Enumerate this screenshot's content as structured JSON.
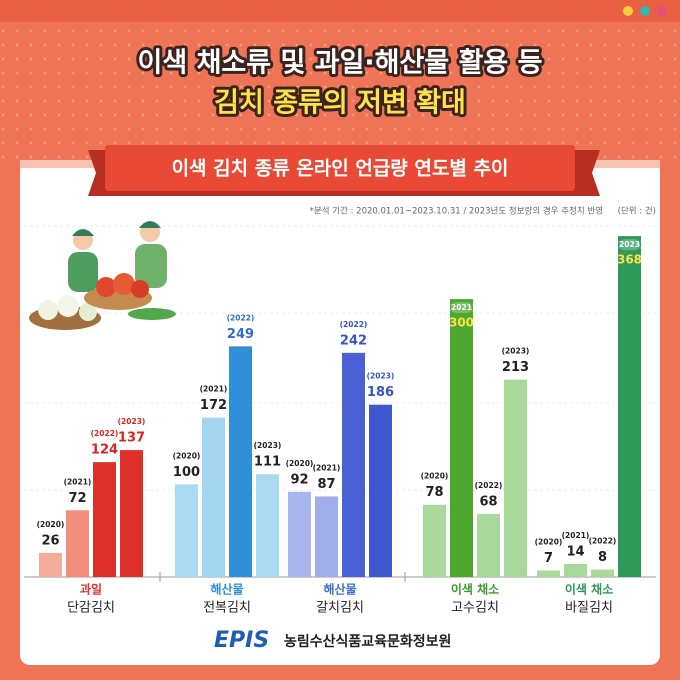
{
  "header": {
    "title_line1": "이색 채소류 및 과일·해산물 활용 등",
    "title_line2": "김치 종류의 저변 확대"
  },
  "chart_data": {
    "type": "grouped-bar",
    "title": "이색 김치 종류 온라인 언급량 연도별 추이",
    "note": "*분석 기간 : 2020.01.01~2023.10.31 / 2023년도 정보량의 경우 추정치 반영",
    "unit": "(단위 : 건)",
    "ylim": [
      0,
      380
    ],
    "groups": [
      {
        "category": "과일",
        "category_color": "#e0312d",
        "name": "단감김치",
        "bars": [
          {
            "year": "(2020)",
            "value": 26,
            "color": "#f5ab99",
            "label_color": "#222222"
          },
          {
            "year": "(2021)",
            "value": 72,
            "color": "#f18d7a",
            "label_color": "#222222"
          },
          {
            "year": "(2022)",
            "value": 124,
            "color": "#df2f2a",
            "label_color": "#d7261f"
          },
          {
            "year": "(2023)",
            "value": 137,
            "color": "#df2f2a",
            "label_color": "#d7261f"
          }
        ]
      },
      {
        "category": "해산물",
        "category_color": "#2f8fd8",
        "name": "전복김치",
        "bars": [
          {
            "year": "(2020)",
            "value": 100,
            "color": "#a9d9f3",
            "label_color": "#222222"
          },
          {
            "year": "(2021)",
            "value": 172,
            "color": "#a3d5f1",
            "label_color": "#222222"
          },
          {
            "year": "(2022)",
            "value": 249,
            "color": "#2f8fd8",
            "label_color": "#2f6fc8"
          },
          {
            "year": "(2023)",
            "value": 111,
            "color": "#a9d9f3",
            "label_color": "#222222"
          }
        ]
      },
      {
        "category": "해산물",
        "category_color": "#3e6fd0",
        "name": "갈치김치",
        "bars": [
          {
            "year": "(2020)",
            "value": 92,
            "color": "#a9b6ee",
            "label_color": "#222222"
          },
          {
            "year": "(2021)",
            "value": 87,
            "color": "#a0aeea",
            "label_color": "#222222"
          },
          {
            "year": "(2022)",
            "value": 242,
            "color": "#4a61d5",
            "label_color": "#3a52c8"
          },
          {
            "year": "(2023)",
            "value": 186,
            "color": "#3e58cf",
            "label_color": "#3a52c8"
          }
        ]
      },
      {
        "category": "이색 채소",
        "category_color": "#3e9a2a",
        "name": "고수김치",
        "bars": [
          {
            "year": "(2020)",
            "value": 78,
            "color": "#a8d89a",
            "label_color": "#222222"
          },
          {
            "year": "(2021)",
            "value": 300,
            "color": "#4ea82f",
            "label_color": "#ffe14a",
            "label_inside": true
          },
          {
            "year": "(2022)",
            "value": 68,
            "color": "#a8d89a",
            "label_color": "#222222"
          },
          {
            "year": "(2023)",
            "value": 213,
            "color": "#a8d89a",
            "label_color": "#222222"
          }
        ]
      },
      {
        "category": "이색 채소",
        "category_color": "#2d9a5a",
        "name": "바질김치",
        "bars": [
          {
            "year": "(2020)",
            "value": 7,
            "color": "#a8d89a",
            "label_color": "#222222"
          },
          {
            "year": "(2021)",
            "value": 14,
            "color": "#a8d89a",
            "label_color": "#222222"
          },
          {
            "year": "(2022)",
            "value": 8,
            "color": "#a8d89a",
            "label_color": "#222222"
          },
          {
            "year": "(2023)",
            "value": 368,
            "color": "#2d9a5a",
            "label_color": "#ffe14a",
            "label_inside": true
          }
        ]
      }
    ]
  },
  "footer": {
    "logo": "EPIS",
    "organization": "농림수산식품교육문화정보원"
  }
}
